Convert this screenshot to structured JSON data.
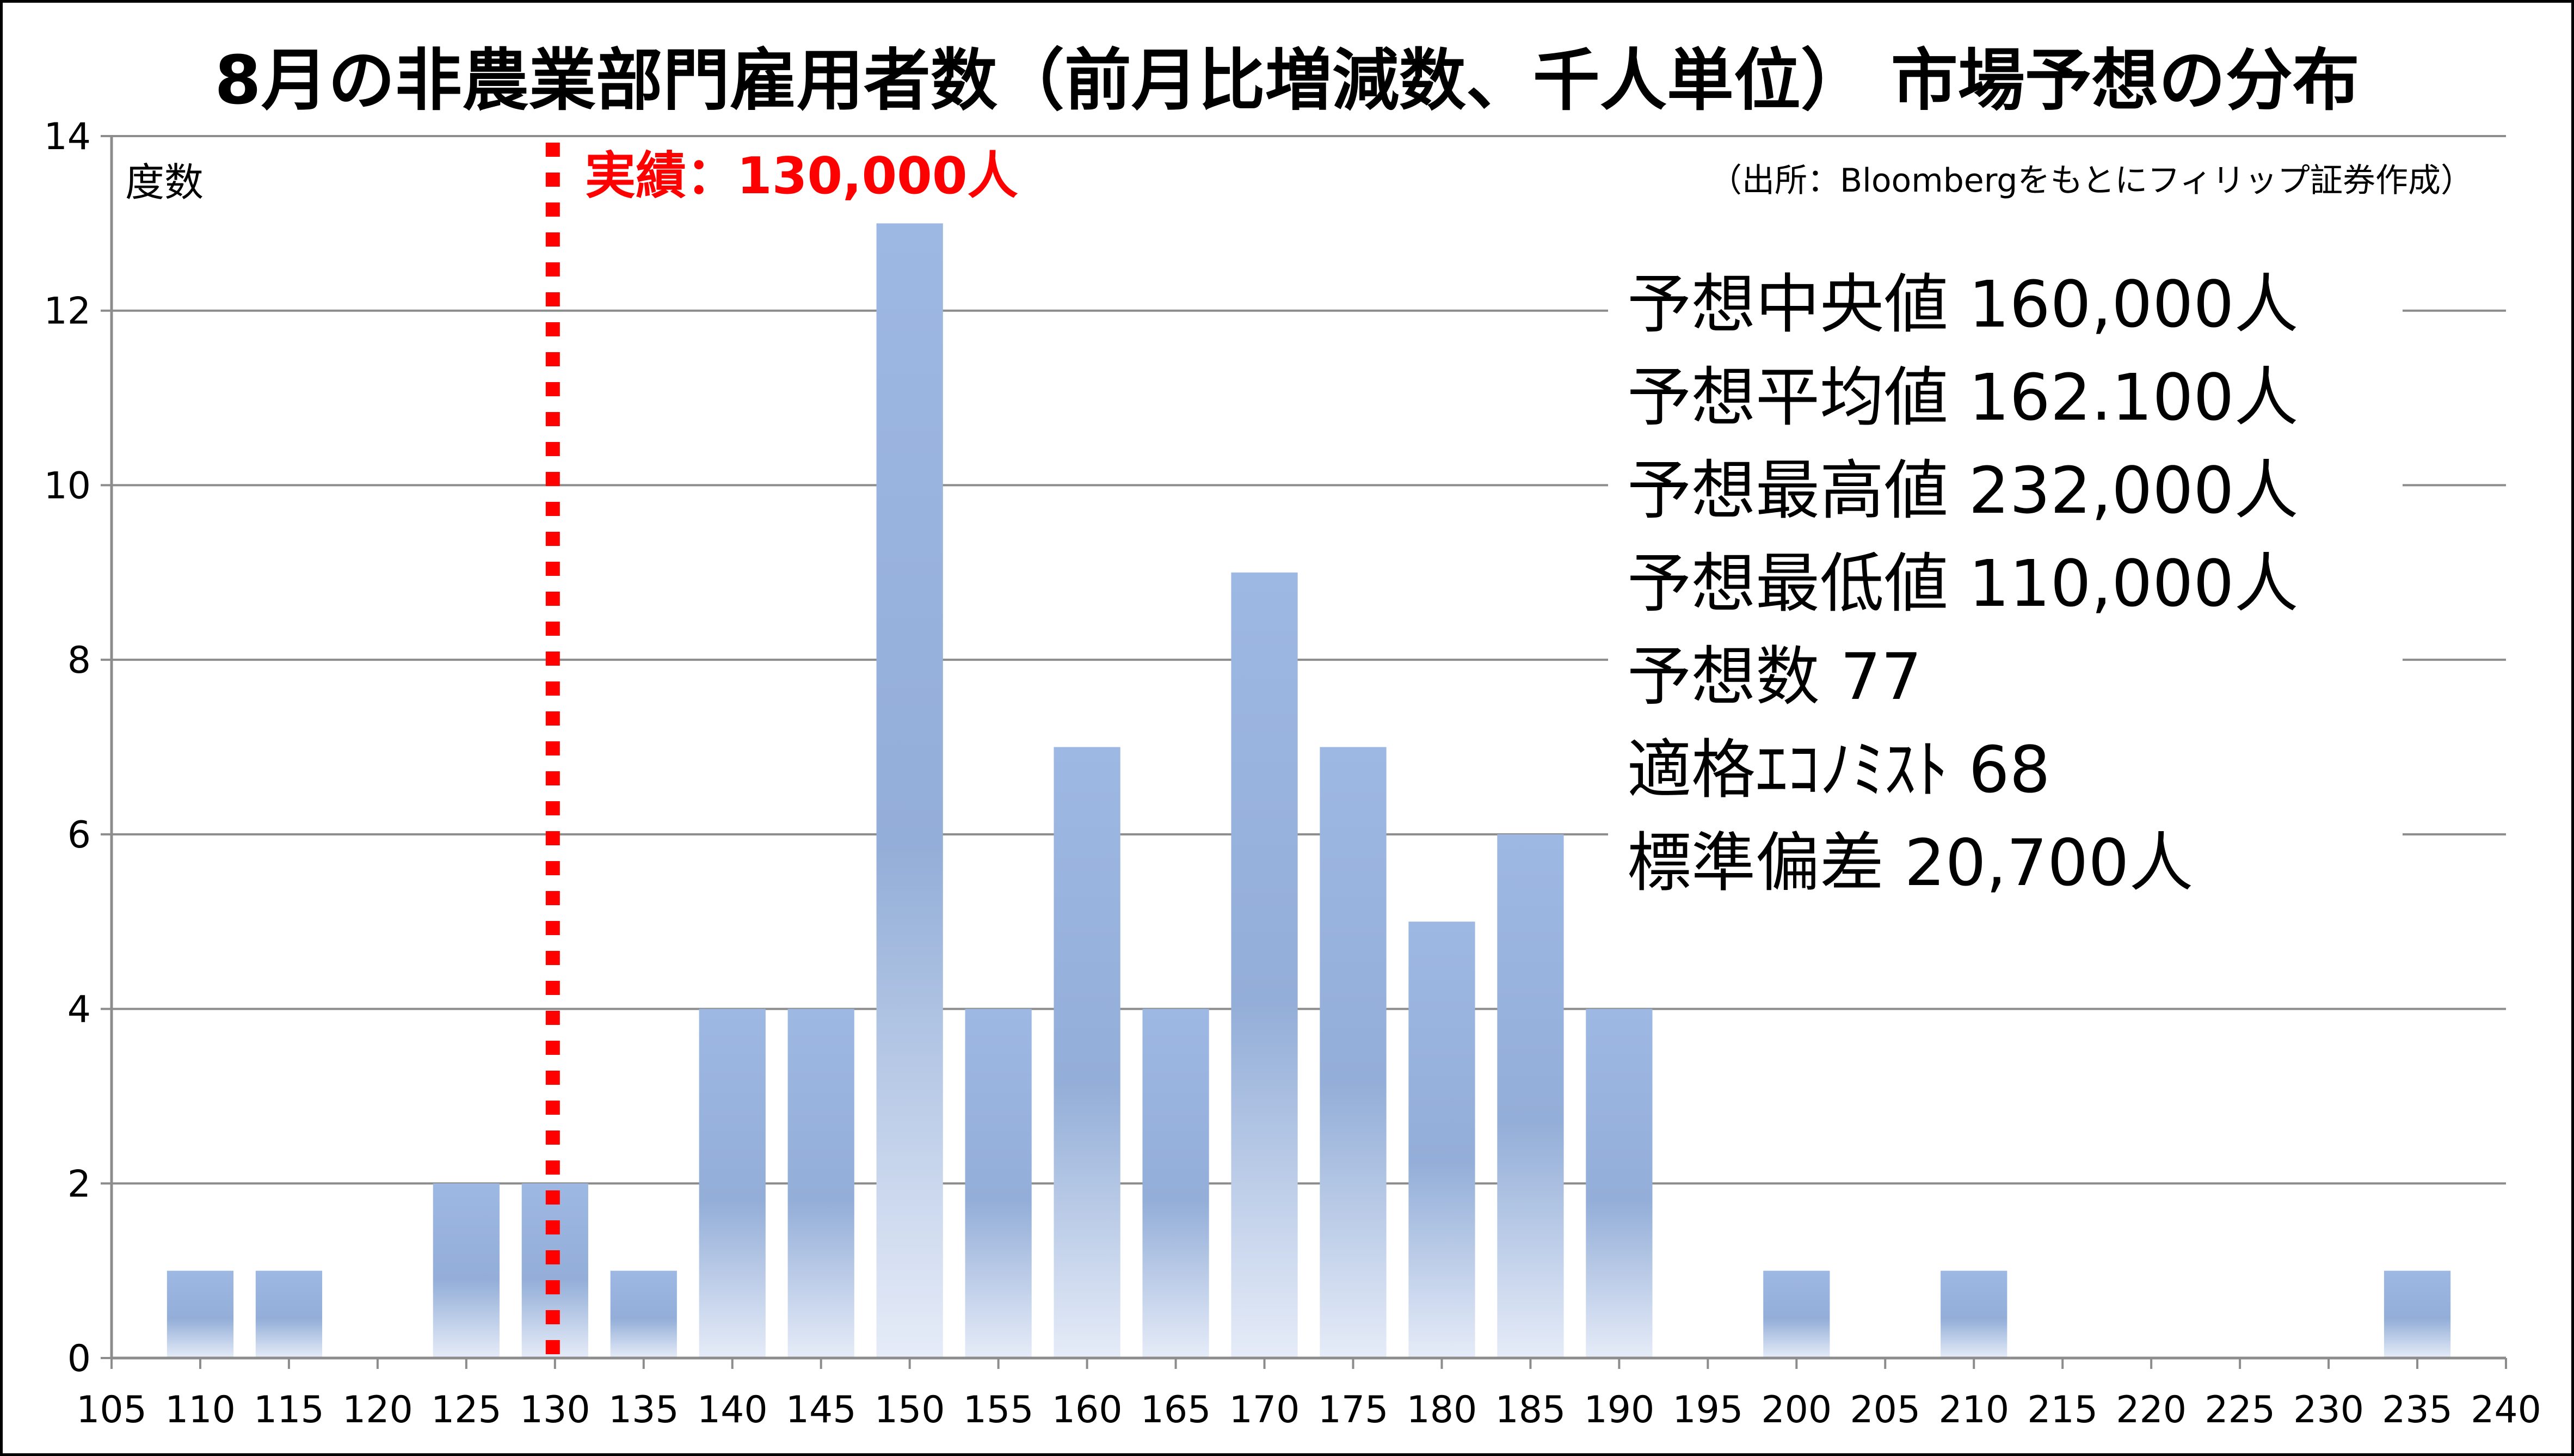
{
  "chart_data": {
    "type": "bar",
    "title": "8月の非農業部門雇用者数（前月比増減数、千人単位） 市場予想の分布",
    "ylabel": "度数",
    "source_note": "（出所：Bloombergをもとにフィリップ証券作成）",
    "x_ticks": [
      "105",
      "110",
      "115",
      "120",
      "125",
      "130",
      "135",
      "140",
      "145",
      "150",
      "155",
      "160",
      "165",
      "170",
      "175",
      "180",
      "185",
      "190",
      "195",
      "200",
      "205",
      "210",
      "215",
      "220",
      "225",
      "230",
      "235",
      "240"
    ],
    "x_range": [
      105,
      240
    ],
    "ylim": [
      0,
      14
    ],
    "y_ticks": [
      "0",
      "2",
      "4",
      "6",
      "8",
      "10",
      "12",
      "14"
    ],
    "grid": true,
    "bars": [
      {
        "x": 110,
        "value": 1
      },
      {
        "x": 115,
        "value": 1
      },
      {
        "x": 125,
        "value": 2
      },
      {
        "x": 130,
        "value": 2
      },
      {
        "x": 135,
        "value": 1
      },
      {
        "x": 140,
        "value": 4
      },
      {
        "x": 145,
        "value": 4
      },
      {
        "x": 150,
        "value": 13
      },
      {
        "x": 155,
        "value": 4
      },
      {
        "x": 160,
        "value": 7
      },
      {
        "x": 165,
        "value": 4
      },
      {
        "x": 170,
        "value": 9
      },
      {
        "x": 175,
        "value": 7
      },
      {
        "x": 180,
        "value": 5
      },
      {
        "x": 185,
        "value": 6
      },
      {
        "x": 190,
        "value": 4
      },
      {
        "x": 200,
        "value": 1
      },
      {
        "x": 210,
        "value": 1
      },
      {
        "x": 235,
        "value": 1
      }
    ],
    "actual_line": {
      "x": 130,
      "label": "実績：130,000人",
      "color": "#ff0000"
    },
    "bar_color_top": "#9db8e3",
    "bar_color_mid": "#93aed8",
    "bar_color_bottom": "#e6ecf8",
    "stats": [
      "予想中央値 160,000人",
      "予想平均値 162.100人",
      "予想最高値 232,000人",
      "予想最低値 110,000人",
      "予想数 77",
      "適格ｴｺﾉﾐｽﾄ 68",
      "標準偏差 20,700人"
    ]
  }
}
